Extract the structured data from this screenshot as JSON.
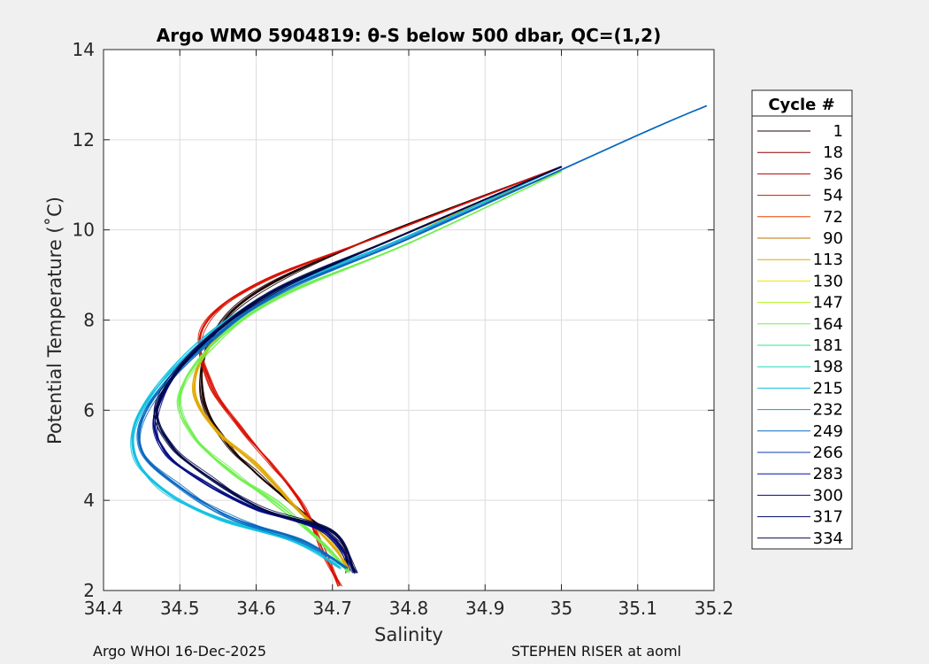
{
  "chart_data": {
    "type": "line",
    "title": "Argo WMO 5904819: θ-S below 500 dbar,  QC=(1,2)",
    "xlabel": "Salinity",
    "ylabel": "Potential Temperature (˚C)",
    "xlim": [
      34.4,
      35.2
    ],
    "ylim": [
      2,
      14
    ],
    "xticks": [
      "34.4",
      "34.5",
      "34.6",
      "34.7",
      "34.8",
      "34.9",
      "35",
      "35.1",
      "35.2"
    ],
    "yticks": [
      "2",
      "4",
      "6",
      "8",
      "10",
      "12",
      "14"
    ],
    "grid": true,
    "legend": {
      "title": "Cycle #",
      "placement": "right",
      "entries": [
        {
          "label": "1",
          "color": "#1c0000"
        },
        {
          "label": "18",
          "color": "#8b0000"
        },
        {
          "label": "36",
          "color": "#b40000"
        },
        {
          "label": "54",
          "color": "#d81000"
        },
        {
          "label": "72",
          "color": "#e84000"
        },
        {
          "label": "90",
          "color": "#c07000"
        },
        {
          "label": "113",
          "color": "#e0a800"
        },
        {
          "label": "130",
          "color": "#f4e000"
        },
        {
          "label": "147",
          "color": "#b8f020"
        },
        {
          "label": "164",
          "color": "#70f050"
        },
        {
          "label": "181",
          "color": "#30e880"
        },
        {
          "label": "198",
          "color": "#20d8b8"
        },
        {
          "label": "215",
          "color": "#10c0e0"
        },
        {
          "label": "232",
          "color": "#1098d8"
        },
        {
          "label": "249",
          "color": "#0868c0"
        },
        {
          "label": "266",
          "color": "#0838b0"
        },
        {
          "label": "283",
          "color": "#0010a0"
        },
        {
          "label": "300",
          "color": "#000c80"
        },
        {
          "label": "317",
          "color": "#000a60"
        },
        {
          "label": "334",
          "color": "#000848"
        }
      ]
    },
    "series": [
      {
        "cycle": "1",
        "color": "#1c0000",
        "s": [
          34.72,
          34.71,
          34.65,
          34.6,
          34.56,
          34.53,
          34.54,
          34.6,
          34.75,
          35.0
        ],
        "theta": [
          2.4,
          3.0,
          3.9,
          4.6,
          5.3,
          6.3,
          7.5,
          8.6,
          9.8,
          11.4
        ]
      },
      {
        "cycle": "54",
        "color": "#d81000",
        "s": [
          34.71,
          34.69,
          34.66,
          34.62,
          34.58,
          34.54,
          34.53,
          34.6,
          34.76,
          35.0
        ],
        "theta": [
          2.1,
          2.8,
          3.9,
          4.8,
          5.6,
          6.6,
          7.8,
          8.8,
          9.85,
          11.4
        ]
      },
      {
        "cycle": "113",
        "color": "#e0a800",
        "s": [
          34.72,
          34.7,
          34.65,
          34.6,
          34.55,
          34.52,
          34.54,
          34.62,
          34.78,
          35.0
        ],
        "theta": [
          2.5,
          3.0,
          3.9,
          4.8,
          5.5,
          6.4,
          7.4,
          8.6,
          9.8,
          11.3
        ]
      },
      {
        "cycle": "164",
        "color": "#70f050",
        "s": [
          34.72,
          34.69,
          34.63,
          34.57,
          34.52,
          34.5,
          34.54,
          34.63,
          34.8,
          35.0
        ],
        "theta": [
          2.4,
          3.0,
          3.9,
          4.6,
          5.4,
          6.3,
          7.4,
          8.5,
          9.7,
          11.3
        ]
      },
      {
        "cycle": "215",
        "color": "#10c0e0",
        "s": [
          34.71,
          34.65,
          34.55,
          34.48,
          34.44,
          34.45,
          34.52,
          34.62,
          34.79,
          35.0
        ],
        "theta": [
          2.5,
          3.1,
          3.6,
          4.2,
          5.0,
          6.0,
          7.4,
          8.6,
          9.8,
          11.4
        ]
      },
      {
        "cycle": "249",
        "color": "#0868c0",
        "s": [
          34.72,
          34.66,
          34.57,
          34.5,
          34.45,
          34.46,
          34.53,
          34.63,
          34.8,
          35.1,
          35.19
        ],
        "theta": [
          2.5,
          3.1,
          3.6,
          4.3,
          5.1,
          6.1,
          7.4,
          8.6,
          9.8,
          12.1,
          12.75
        ]
      },
      {
        "cycle": "300",
        "color": "#000c80",
        "s": [
          34.73,
          34.69,
          34.6,
          34.53,
          34.48,
          34.47,
          34.52,
          34.62,
          34.78,
          35.0
        ],
        "theta": [
          2.4,
          3.3,
          3.8,
          4.4,
          5.1,
          6.0,
          7.3,
          8.6,
          9.8,
          11.4
        ]
      },
      {
        "cycle": "334",
        "color": "#000848",
        "s": [
          34.73,
          34.7,
          34.61,
          34.54,
          34.49,
          34.47,
          34.52,
          34.62,
          34.78,
          35.0
        ],
        "theta": [
          2.4,
          3.3,
          3.8,
          4.5,
          5.2,
          6.1,
          7.3,
          8.6,
          9.8,
          11.4
        ]
      }
    ]
  },
  "footer": {
    "left": "Argo WHOI 16-Dec-2025",
    "right": "STEPHEN RISER at aoml"
  }
}
